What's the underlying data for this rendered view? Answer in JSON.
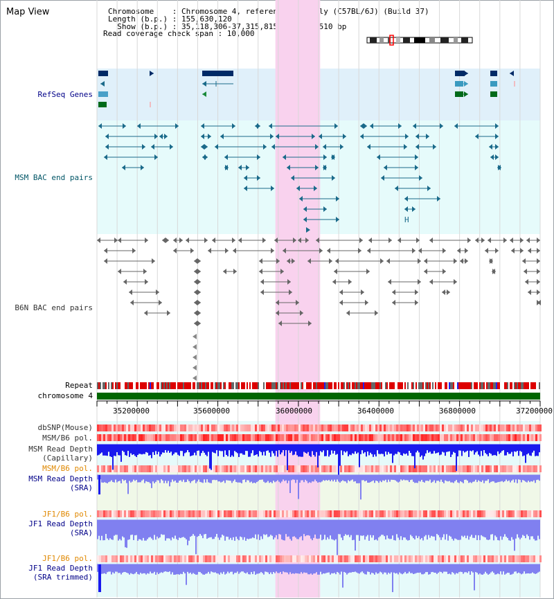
{
  "page_title": "Map View",
  "info": {
    "chromosome_line": "Chromosome    : Chromosome 4, reference assembly (C57BL/6J) (Build 37)",
    "length_line": "Length (b.p.) : 155,630,120",
    "show_line": "  Show (b.p.) : 35,118,306-37,315,815 : 2,197,510 bp",
    "coverage_line": "Read coverage check span : 10,000"
  },
  "tracks": {
    "refseq": "RefSeq Genes",
    "msm_bac": "MSM BAC end pairs",
    "b6n_bac": "B6N BAC end pairs",
    "repeat": "Repeat",
    "chromosome": "chromosome 4",
    "dbsnp": "dbSNP(Mouse)",
    "msm_b6_pol": "MSM/B6 pol.",
    "msm_depth_cap_1": "MSM Read Depth",
    "msm_depth_cap_2": "(Capillary)",
    "msm_b6_pol_2": "MSM/B6 pol.",
    "msm_depth_sra_1": "MSM Read Depth",
    "msm_depth_sra_2": "(SRA)",
    "jf1_b6_pol": "JF1/B6 pol.",
    "jf1_depth_sra_1": "JF1 Read Depth",
    "jf1_depth_sra_2": "(SRA)",
    "jf1_b6_pol_2": "JF1/B6 pol.",
    "jf1_depth_trim_1": "JF1 Read Depth",
    "jf1_depth_trim_2": "(SRA trimmed)"
  },
  "axis": {
    "ticks": [
      "35200000",
      "35600000",
      "36000000",
      "36400000",
      "36800000",
      "37200000"
    ],
    "range_bp": [
      35118306,
      37315815
    ]
  },
  "highlight_region_bp": [
    36003000,
    36225000
  ],
  "colors": {
    "refseq_band": "#e0f0fa",
    "msm_band": "#e6fbfb",
    "highlight": "#f9d2ee",
    "chromosome_bar": "#006600",
    "repeat_red": "#dd0000",
    "repeat_grey": "#666666",
    "snp_red": "#ee2222",
    "depth_dark": "#1a1aee",
    "depth_light": "#8080f0",
    "label_navy": "#000088",
    "label_teal": "#005566",
    "label_orange": "#e08800",
    "msm_feature": "#1a6a8a",
    "b6n_feature": "#555555"
  }
}
